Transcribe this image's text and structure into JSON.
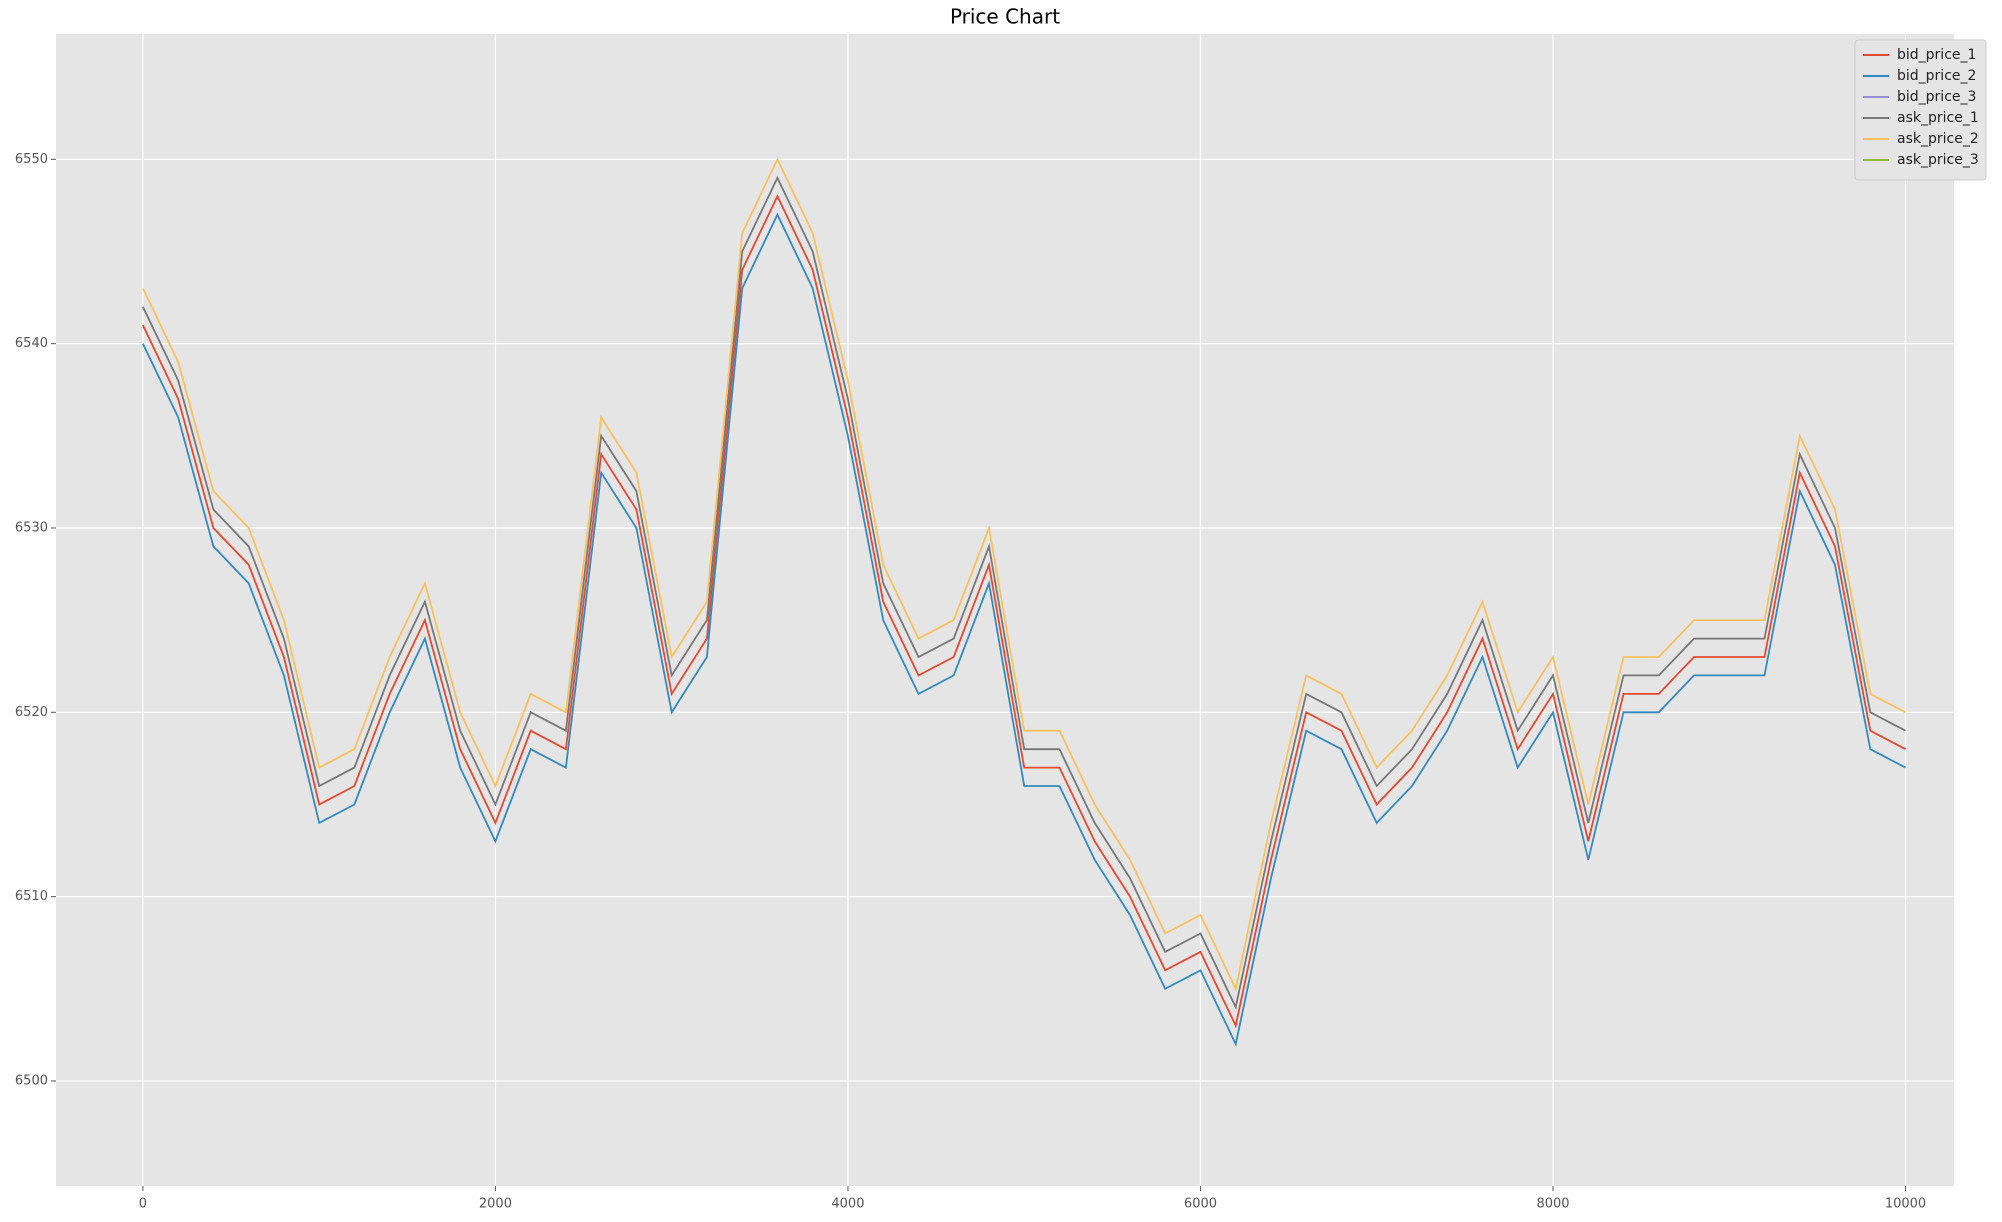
{
  "chart_data": {
    "type": "line",
    "title": "Price Chart",
    "x": [
      0,
      200,
      400,
      600,
      800,
      1000,
      1200,
      1400,
      1600,
      1800,
      2000,
      2200,
      2400,
      2600,
      2800,
      3000,
      3200,
      3400,
      3600,
      3800,
      4000,
      4200,
      4400,
      4600,
      4800,
      5000,
      5200,
      5400,
      5600,
      5800,
      6000,
      6200,
      6400,
      6600,
      6800,
      7000,
      7200,
      7400,
      7600,
      7800,
      8000,
      8200,
      8400,
      8600,
      8800,
      9000,
      9200,
      9400,
      9600,
      9800,
      10000
    ],
    "series": [
      {
        "name": "bid_price_1",
        "color": "#E24A33",
        "values": [
          6541,
          6537,
          6530,
          6528,
          6523,
          6515,
          6516,
          6521,
          6525,
          6518,
          6514,
          6519,
          6518,
          6534,
          6531,
          6521,
          6524,
          6544,
          6548,
          6544,
          6536,
          6526,
          6522,
          6523,
          6528,
          6517,
          6517,
          6513,
          6510,
          6506,
          6507,
          6503,
          6512,
          6520,
          6519,
          6515,
          6517,
          6520,
          6524,
          6518,
          6521,
          6513,
          6521,
          6521,
          6523,
          6523,
          6523,
          6533,
          6529,
          6519,
          6518
        ]
      },
      {
        "name": "bid_price_2",
        "color": "#348ABD",
        "values": [
          6540,
          6536,
          6529,
          6527,
          6522,
          6514,
          6515,
          6520,
          6524,
          6517,
          6513,
          6518,
          6517,
          6533,
          6530,
          6520,
          6523,
          6543,
          6547,
          6543,
          6535,
          6525,
          6521,
          6522,
          6527,
          6516,
          6516,
          6512,
          6509,
          6505,
          6506,
          6502,
          6511,
          6519,
          6518,
          6514,
          6516,
          6519,
          6523,
          6517,
          6520,
          6512,
          6520,
          6520,
          6522,
          6522,
          6522,
          6532,
          6528,
          6518,
          6517
        ]
      },
      {
        "name": "bid_price_3",
        "color": "#988ED5",
        "values": [
          null,
          null,
          null,
          null,
          null,
          null,
          null,
          null,
          null,
          null,
          null,
          null,
          null,
          null,
          null,
          null,
          null,
          null,
          null,
          null,
          null,
          null,
          null,
          null,
          null,
          null,
          null,
          null,
          null,
          null,
          null,
          null,
          null,
          null,
          null,
          null,
          null,
          null,
          null,
          null,
          null,
          null,
          null,
          null,
          null,
          null,
          null,
          null,
          null,
          null,
          null
        ]
      },
      {
        "name": "ask_price_1",
        "color": "#777777",
        "values": [
          6542,
          6538,
          6531,
          6529,
          6524,
          6516,
          6517,
          6522,
          6526,
          6519,
          6515,
          6520,
          6519,
          6535,
          6532,
          6522,
          6525,
          6545,
          6549,
          6545,
          6537,
          6527,
          6523,
          6524,
          6529,
          6518,
          6518,
          6514,
          6511,
          6507,
          6508,
          6504,
          6513,
          6521,
          6520,
          6516,
          6518,
          6521,
          6525,
          6519,
          6522,
          6514,
          6522,
          6522,
          6524,
          6524,
          6524,
          6534,
          6530,
          6520,
          6519
        ]
      },
      {
        "name": "ask_price_2",
        "color": "#FBC15E",
        "values": [
          6543,
          6539,
          6532,
          6530,
          6525,
          6517,
          6518,
          6523,
          6527,
          6520,
          6516,
          6521,
          6520,
          6536,
          6533,
          6523,
          6526,
          6546,
          6550,
          6546,
          6538,
          6528,
          6524,
          6525,
          6530,
          6519,
          6519,
          6515,
          6512,
          6508,
          6509,
          6505,
          6514,
          6522,
          6521,
          6517,
          6519,
          6522,
          6526,
          6520,
          6523,
          6515,
          6523,
          6523,
          6525,
          6525,
          6525,
          6535,
          6531,
          6521,
          6520
        ]
      },
      {
        "name": "ask_price_3",
        "color": "#8EBA42",
        "values": [
          null,
          null,
          null,
          null,
          null,
          null,
          null,
          null,
          null,
          null,
          null,
          null,
          null,
          null,
          null,
          null,
          null,
          null,
          null,
          null,
          null,
          null,
          null,
          null,
          null,
          null,
          null,
          null,
          null,
          null,
          null,
          null,
          null,
          null,
          null,
          null,
          null,
          null,
          null,
          null,
          null,
          null,
          null,
          null,
          null,
          null,
          null,
          null,
          null,
          null,
          null
        ]
      }
    ],
    "xlim": [
      -493,
      10275
    ],
    "ylim": [
      6494.3,
      6556.8
    ],
    "xticks": [
      0,
      2000,
      4000,
      6000,
      8000,
      10000
    ],
    "yticks": [
      6500,
      6510,
      6520,
      6530,
      6540,
      6550
    ],
    "grid": true,
    "legend": "upper right"
  }
}
